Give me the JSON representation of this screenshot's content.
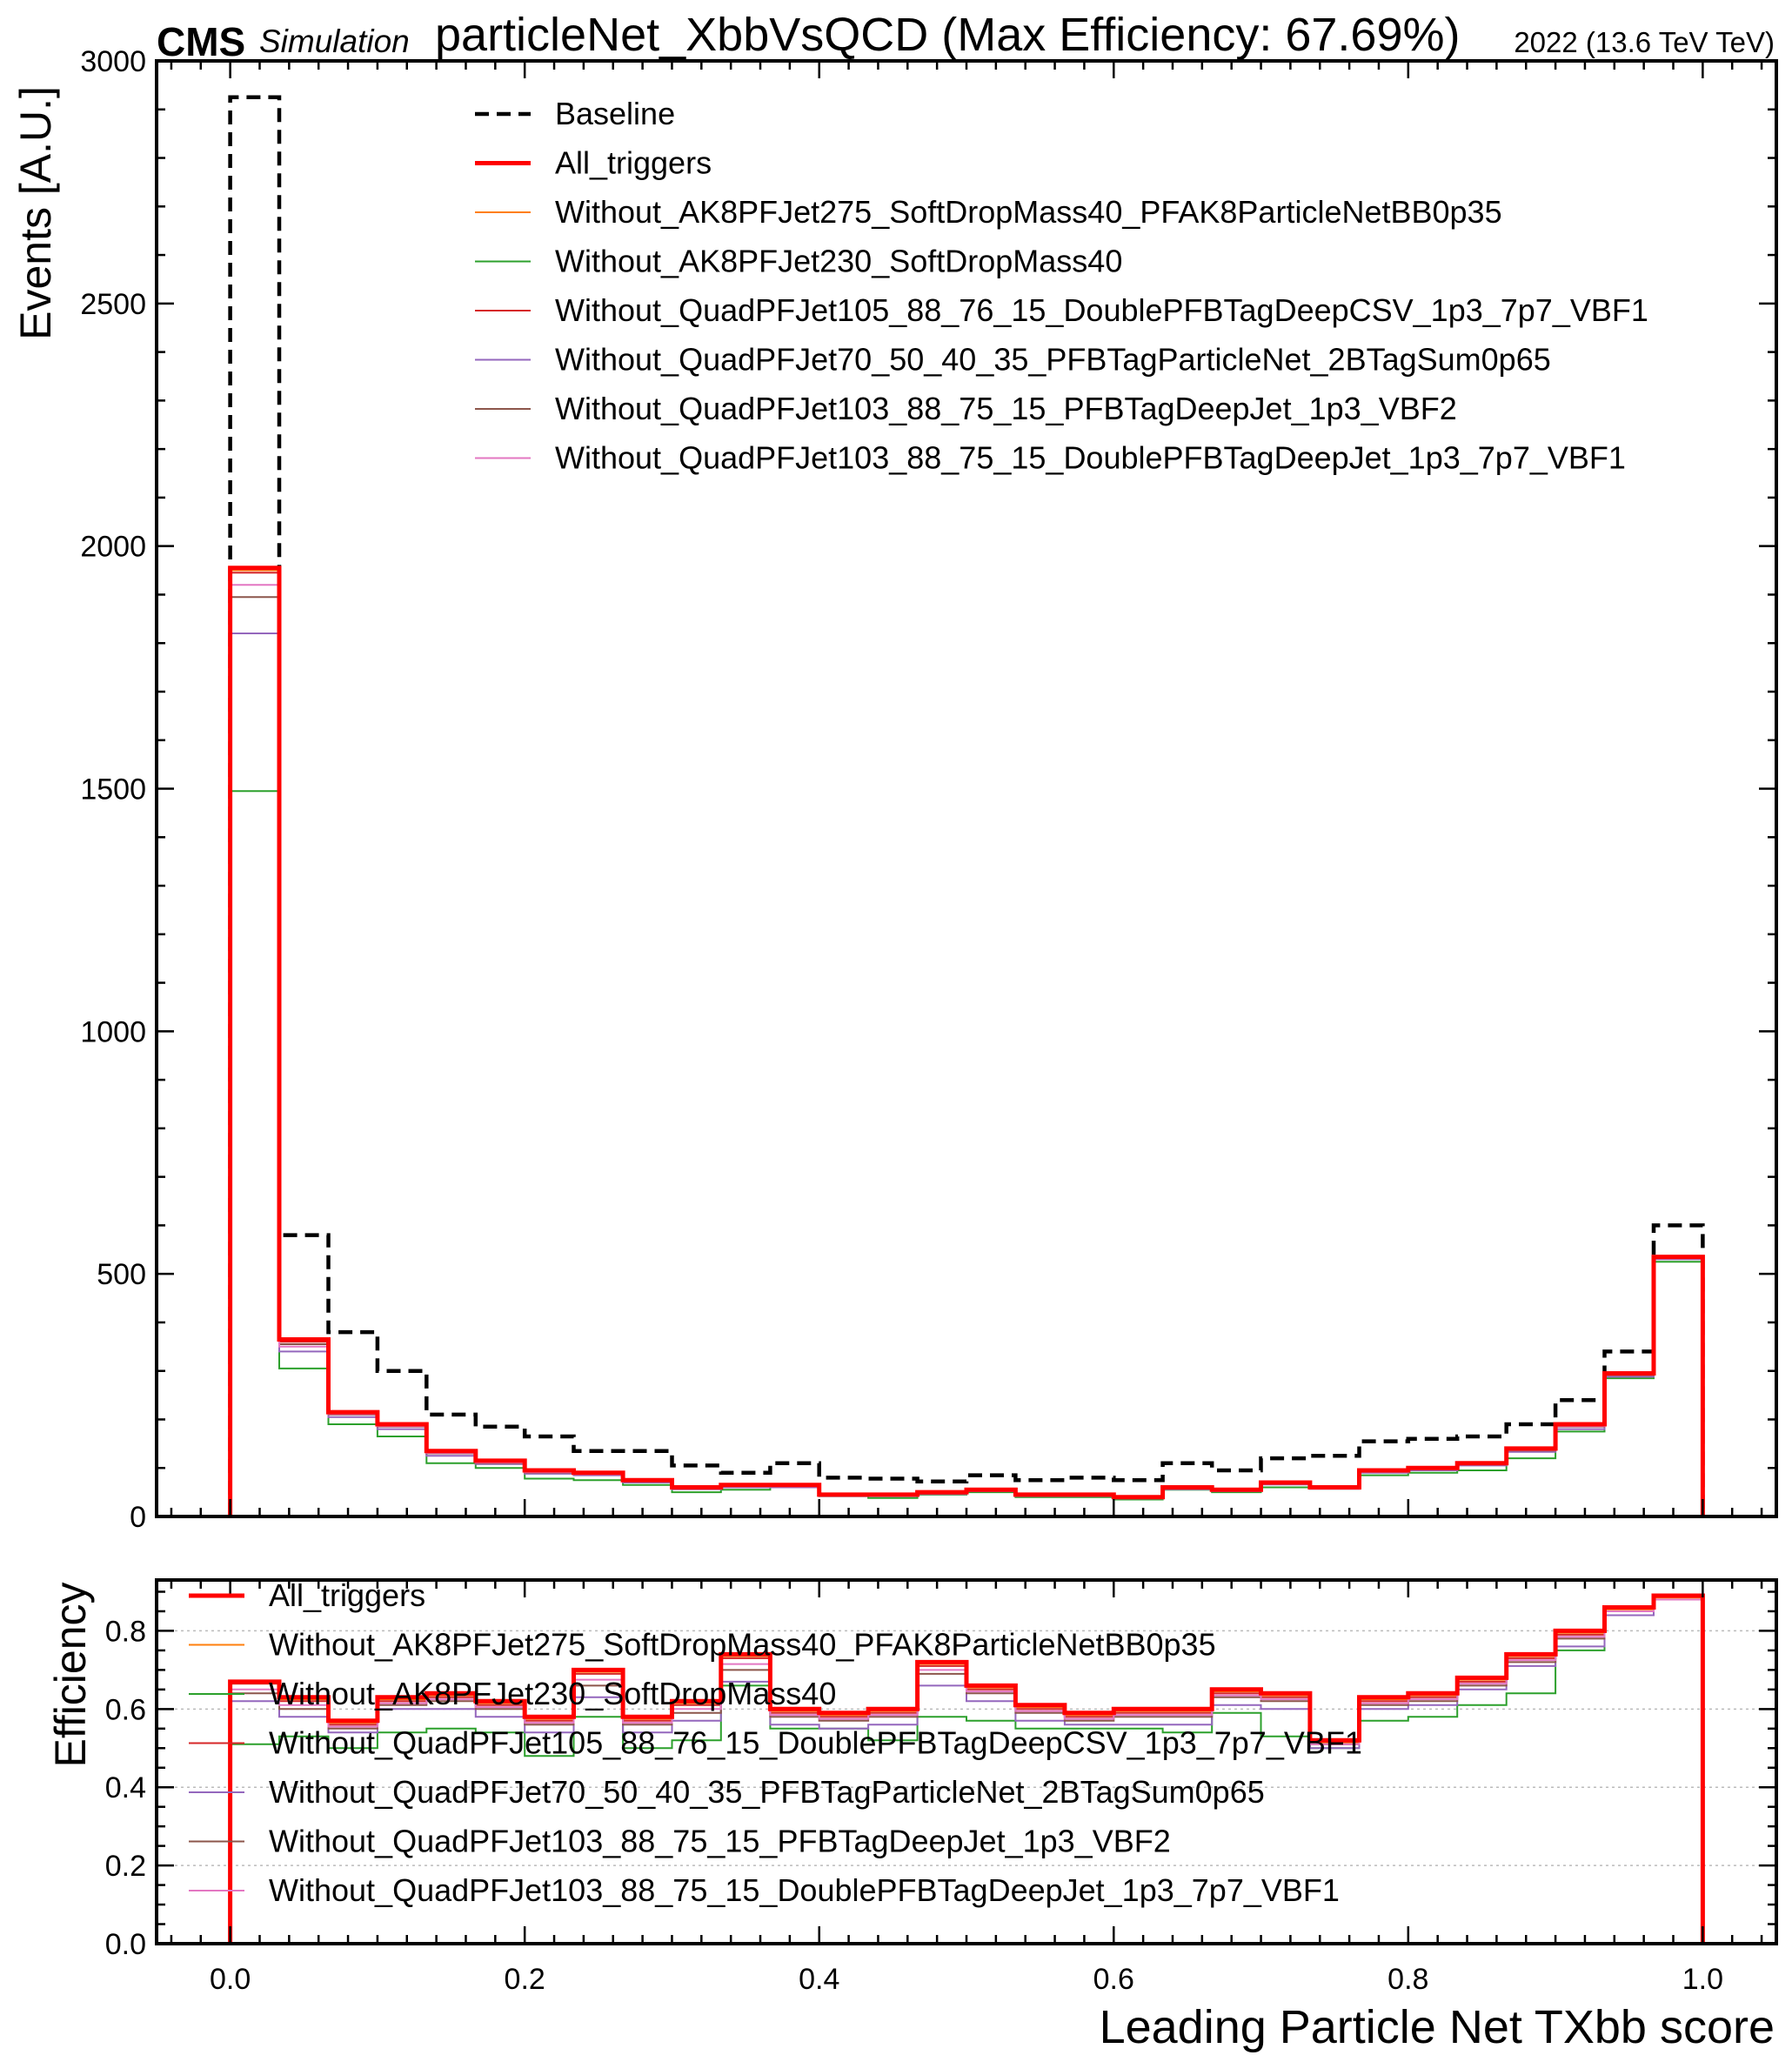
{
  "header": {
    "cms": "CMS",
    "simulation": "Simulation",
    "title": "particleNet_XbbVsQCD (Max Efficiency: 67.69%)",
    "lumi": "2022 (13.6 TeV TeV)"
  },
  "colors": {
    "baseline": "#000000",
    "all_triggers": "#ff0000",
    "without_ak8_275": "#ff7f0e",
    "without_ak8_230": "#2ca02c",
    "without_quad105": "#d62728",
    "without_quad70": "#9467bd",
    "without_quad103_deepjet": "#8c564b",
    "without_quad103_double": "#e377c2"
  },
  "chart_data": [
    {
      "type": "line",
      "panel": "top",
      "drawstyle": "step",
      "ylabel": "Events [A.U.]",
      "xlim": [
        -0.05,
        1.05
      ],
      "ylim": [
        0,
        3000
      ],
      "yticks": [
        0,
        500,
        1000,
        1500,
        2000,
        2500,
        3000
      ],
      "ytick_labels": [
        "0",
        "500",
        "1000",
        "1500",
        "2000",
        "2500",
        "3000"
      ],
      "grid": false,
      "legend_position": "top",
      "x_edges": [
        0.0,
        0.0333,
        0.0667,
        0.1,
        0.1333,
        0.1667,
        0.2,
        0.2333,
        0.2667,
        0.3,
        0.3333,
        0.3667,
        0.4,
        0.4333,
        0.4667,
        0.5,
        0.5333,
        0.5667,
        0.6,
        0.6333,
        0.6667,
        0.7,
        0.7333,
        0.7667,
        0.8,
        0.8333,
        0.8667,
        0.9,
        0.9333,
        0.9667,
        1.0
      ],
      "series": [
        {
          "name": "Baseline",
          "key": "baseline",
          "dashed": true,
          "width": 4.5,
          "values": [
            2925,
            580,
            380,
            300,
            210,
            185,
            165,
            135,
            135,
            105,
            90,
            110,
            80,
            78,
            72,
            85,
            75,
            80,
            75,
            110,
            95,
            120,
            125,
            155,
            160,
            165,
            190,
            240,
            340,
            600
          ]
        },
        {
          "name": "All_triggers",
          "key": "all_triggers",
          "dashed": false,
          "width": 5,
          "values": [
            1955,
            365,
            215,
            190,
            135,
            115,
            95,
            90,
            75,
            60,
            65,
            65,
            45,
            45,
            50,
            55,
            45,
            45,
            40,
            60,
            55,
            70,
            60,
            95,
            100,
            110,
            140,
            190,
            295,
            535
          ]
        },
        {
          "name": "Without_AK8PFJet275_SoftDropMass40_PFAK8ParticleNetBB0p35",
          "key": "without_ak8_275",
          "dashed": false,
          "width": 2,
          "values": [
            1950,
            362,
            214,
            189,
            134,
            114,
            94,
            89,
            74,
            59,
            64,
            64,
            44,
            44,
            49,
            54,
            44,
            44,
            39,
            59,
            54,
            69,
            59,
            94,
            99,
            109,
            139,
            189,
            294,
            534
          ]
        },
        {
          "name": "Without_AK8PFJet230_SoftDropMass40",
          "key": "without_ak8_230",
          "dashed": false,
          "width": 2,
          "values": [
            1495,
            305,
            190,
            165,
            110,
            100,
            78,
            75,
            65,
            50,
            55,
            60,
            42,
            38,
            45,
            50,
            40,
            40,
            35,
            55,
            50,
            60,
            58,
            85,
            90,
            95,
            120,
            175,
            285,
            525
          ]
        },
        {
          "name": "Without_QuadPFJet105_88_76_15_DoublePFBTagDeepCSV_1p3_7p7_VBF1",
          "key": "without_quad105",
          "dashed": false,
          "width": 2,
          "values": [
            1945,
            360,
            212,
            188,
            133,
            113,
            93,
            88,
            73,
            58,
            63,
            63,
            43,
            43,
            48,
            53,
            43,
            43,
            38,
            58,
            53,
            68,
            58,
            93,
            98,
            108,
            138,
            188,
            293,
            533
          ]
        },
        {
          "name": "Without_QuadPFJet70_50_40_35_PFBTagParticleNet_2BTagSum0p65",
          "key": "without_quad70",
          "dashed": false,
          "width": 2,
          "values": [
            1820,
            340,
            205,
            180,
            125,
            108,
            88,
            85,
            70,
            56,
            60,
            60,
            42,
            42,
            46,
            52,
            42,
            42,
            37,
            56,
            52,
            66,
            57,
            90,
            95,
            105,
            133,
            180,
            288,
            530
          ]
        },
        {
          "name": "Without_QuadPFJet103_88_75_15_PFBTagDeepJet_1p3_VBF2",
          "key": "without_quad103_deepjet",
          "dashed": false,
          "width": 2,
          "values": [
            1895,
            355,
            210,
            185,
            130,
            110,
            90,
            87,
            72,
            57,
            62,
            62,
            43,
            43,
            47,
            53,
            43,
            43,
            38,
            57,
            53,
            67,
            58,
            92,
            97,
            107,
            136,
            185,
            291,
            532
          ]
        },
        {
          "name": "Without_QuadPFJet103_88_75_15_DoublePFBTagDeepJet_1p3_7p7_VBF1",
          "key": "without_quad103_double",
          "dashed": false,
          "width": 2,
          "values": [
            1920,
            350,
            211,
            186,
            131,
            111,
            91,
            87,
            72,
            57,
            62,
            62,
            43,
            43,
            47,
            53,
            43,
            43,
            38,
            57,
            53,
            67,
            58,
            92,
            97,
            107,
            137,
            186,
            292,
            532
          ]
        }
      ]
    },
    {
      "type": "line",
      "panel": "bottom",
      "drawstyle": "step",
      "xlabel": "Leading Particle Net TXbb score",
      "ylabel": "Efficiency",
      "xlim": [
        -0.05,
        1.05
      ],
      "ylim": [
        0,
        0.93
      ],
      "xticks": [
        0.0,
        0.2,
        0.4,
        0.6,
        0.8,
        1.0
      ],
      "xtick_labels": [
        "0.0",
        "0.2",
        "0.4",
        "0.6",
        "0.8",
        "1.0"
      ],
      "yticks": [
        0.0,
        0.2,
        0.4,
        0.6,
        0.8
      ],
      "ytick_labels": [
        "0.0",
        "0.2",
        "0.4",
        "0.6",
        "0.8"
      ],
      "grid": "horizontal dotted",
      "legend_position": "top-left",
      "x_edges": [
        0.0,
        0.0333,
        0.0667,
        0.1,
        0.1333,
        0.1667,
        0.2,
        0.2333,
        0.2667,
        0.3,
        0.3333,
        0.3667,
        0.4,
        0.4333,
        0.4667,
        0.5,
        0.5333,
        0.5667,
        0.6,
        0.6333,
        0.6667,
        0.7,
        0.7333,
        0.7667,
        0.8,
        0.8333,
        0.8667,
        0.9,
        0.9333,
        0.9667,
        1.0
      ],
      "series": [
        {
          "name": "All_triggers",
          "key": "all_triggers",
          "width": 5,
          "values": [
            0.67,
            0.63,
            0.57,
            0.63,
            0.64,
            0.62,
            0.58,
            0.7,
            0.58,
            0.62,
            0.74,
            0.6,
            0.59,
            0.6,
            0.72,
            0.66,
            0.61,
            0.59,
            0.6,
            0.6,
            0.65,
            0.64,
            0.52,
            0.63,
            0.64,
            0.68,
            0.74,
            0.8,
            0.86,
            0.89
          ]
        },
        {
          "name": "Without_AK8PFJet275_SoftDropMass40_PFAK8ParticleNetBB0p35",
          "key": "without_ak8_275",
          "width": 2,
          "values": [
            0.665,
            0.625,
            0.565,
            0.625,
            0.635,
            0.615,
            0.575,
            0.695,
            0.575,
            0.615,
            0.735,
            0.595,
            0.585,
            0.595,
            0.715,
            0.655,
            0.605,
            0.585,
            0.595,
            0.595,
            0.645,
            0.635,
            0.515,
            0.625,
            0.635,
            0.675,
            0.735,
            0.795,
            0.855,
            0.885
          ]
        },
        {
          "name": "Without_AK8PFJet230_SoftDropMass40",
          "key": "without_ak8_230",
          "width": 2,
          "values": [
            0.51,
            0.53,
            0.5,
            0.54,
            0.55,
            0.54,
            0.48,
            0.58,
            0.5,
            0.52,
            0.66,
            0.55,
            0.55,
            0.52,
            0.58,
            0.57,
            0.55,
            0.55,
            0.55,
            0.54,
            0.59,
            0.53,
            0.5,
            0.57,
            0.58,
            0.61,
            0.64,
            0.75,
            0.84,
            0.88
          ]
        },
        {
          "name": "Without_QuadPFJet105_88_76_15_DoublePFBTagDeepCSV_1p3_7p7_VBF1",
          "key": "without_quad105",
          "width": 2,
          "values": [
            0.665,
            0.62,
            0.56,
            0.62,
            0.63,
            0.61,
            0.57,
            0.69,
            0.57,
            0.61,
            0.73,
            0.59,
            0.58,
            0.59,
            0.71,
            0.65,
            0.6,
            0.58,
            0.59,
            0.59,
            0.64,
            0.63,
            0.51,
            0.62,
            0.63,
            0.67,
            0.73,
            0.79,
            0.85,
            0.88
          ]
        },
        {
          "name": "Without_QuadPFJet70_50_40_35_PFBTagParticleNet_2BTagSum0p65",
          "key": "without_quad70",
          "width": 2,
          "values": [
            0.62,
            0.58,
            0.54,
            0.6,
            0.6,
            0.58,
            0.54,
            0.63,
            0.54,
            0.57,
            0.67,
            0.56,
            0.55,
            0.56,
            0.66,
            0.62,
            0.57,
            0.56,
            0.56,
            0.56,
            0.61,
            0.6,
            0.5,
            0.6,
            0.61,
            0.65,
            0.71,
            0.76,
            0.84,
            0.88
          ]
        },
        {
          "name": "Without_QuadPFJet103_88_75_15_PFBTagDeepJet_1p3_VBF2",
          "key": "without_quad103_deepjet",
          "width": 2,
          "values": [
            0.64,
            0.6,
            0.55,
            0.61,
            0.62,
            0.6,
            0.56,
            0.66,
            0.56,
            0.59,
            0.7,
            0.58,
            0.57,
            0.58,
            0.69,
            0.64,
            0.59,
            0.57,
            0.58,
            0.58,
            0.63,
            0.62,
            0.51,
            0.61,
            0.62,
            0.66,
            0.72,
            0.78,
            0.85,
            0.88
          ]
        },
        {
          "name": "Without_QuadPFJet103_88_75_15_DoublePFBTagDeepJet_1p3_7p7_VBF1",
          "key": "without_quad103_double",
          "width": 2,
          "values": [
            0.65,
            0.61,
            0.555,
            0.615,
            0.625,
            0.605,
            0.565,
            0.675,
            0.565,
            0.6,
            0.715,
            0.585,
            0.575,
            0.585,
            0.7,
            0.645,
            0.595,
            0.575,
            0.585,
            0.585,
            0.635,
            0.625,
            0.51,
            0.615,
            0.625,
            0.665,
            0.725,
            0.785,
            0.85,
            0.88
          ]
        }
      ]
    }
  ]
}
